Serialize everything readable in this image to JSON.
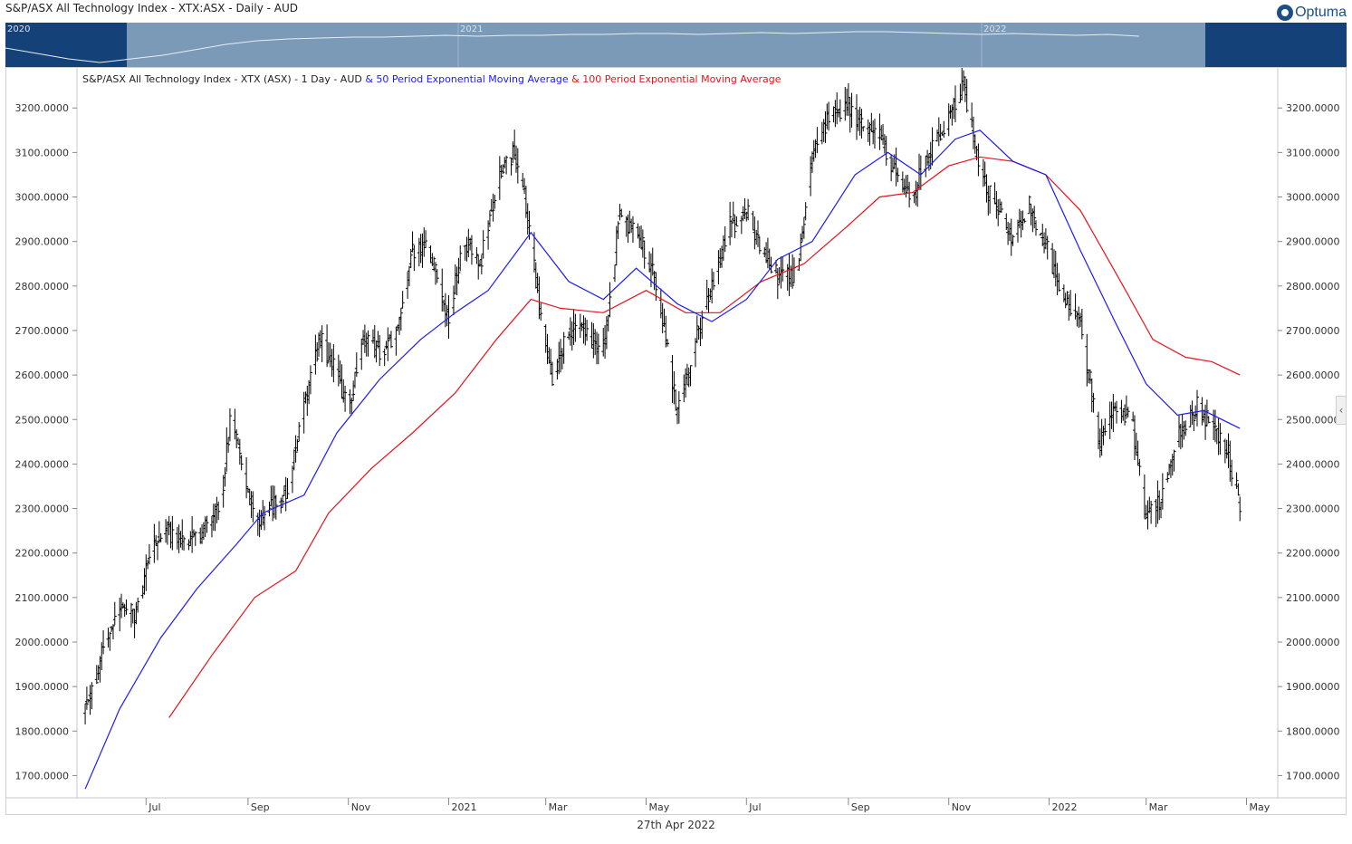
{
  "header": {
    "title": "S&P/ASX All Technology Index - XTX:ASX - Daily - AUD"
  },
  "logo": {
    "text": "Optuma"
  },
  "navigator": {
    "year_labels": [
      "2020",
      "2021",
      "2022"
    ]
  },
  "legend": {
    "main": "S&P/ASX All Technology Index - XTX (ASX) - 1 Day - AUD",
    "ema50": "& 50 Period Exponential Moving Average",
    "ema100": "& 100 Period Exponential Moving Average"
  },
  "footer": {
    "date": "27th Apr 2022"
  },
  "colors": {
    "price": "#000000",
    "ema50": "#1a1aff",
    "ema100": "#e8121a",
    "nav_bg": "#134178",
    "nav_window": "#7a9ab8"
  },
  "chart_data": {
    "type": "line",
    "subtype": "ohlc-bars",
    "ylim": [
      1650,
      3290
    ],
    "y_ticks": [
      "1700.0000",
      "1800.0000",
      "1900.0000",
      "2000.0000",
      "2100.0000",
      "2200.0000",
      "2300.0000",
      "2400.0000",
      "2500.0000",
      "2600.0000",
      "2700.0000",
      "2800.0000",
      "2900.0000",
      "3000.0000",
      "3100.0000",
      "3200.0000"
    ],
    "x_ticks": [
      "Jul",
      "Sep",
      "Nov",
      "2021",
      "Mar",
      "May",
      "Jul",
      "Sep",
      "Nov",
      "2022",
      "Mar",
      "May"
    ],
    "x_range": [
      "2020-05-20",
      "2022-05-20"
    ],
    "series": [
      {
        "name": "S&P/ASX All Technology Index - XTX (ASX) - 1 Day - AUD",
        "x": [
          "2020-05-25",
          "2020-06-05",
          "2020-06-15",
          "2020-06-25",
          "2020-07-05",
          "2020-07-15",
          "2020-07-25",
          "2020-08-05",
          "2020-08-15",
          "2020-08-22",
          "2020-08-28",
          "2020-09-05",
          "2020-09-15",
          "2020-09-25",
          "2020-10-05",
          "2020-10-15",
          "2020-10-25",
          "2020-11-01",
          "2020-11-10",
          "2020-11-20",
          "2020-12-01",
          "2020-12-10",
          "2020-12-20",
          "2021-01-01",
          "2021-01-10",
          "2021-01-20",
          "2021-02-01",
          "2021-02-10",
          "2021-02-17",
          "2021-02-25",
          "2021-03-05",
          "2021-03-15",
          "2021-03-25",
          "2021-04-05",
          "2021-04-15",
          "2021-04-25",
          "2021-05-05",
          "2021-05-12",
          "2021-05-20",
          "2021-06-01",
          "2021-06-10",
          "2021-06-20",
          "2021-07-01",
          "2021-07-10",
          "2021-07-20",
          "2021-08-01",
          "2021-08-10",
          "2021-08-20",
          "2021-09-01",
          "2021-09-10",
          "2021-09-20",
          "2021-10-01",
          "2021-10-10",
          "2021-10-20",
          "2021-11-01",
          "2021-11-10",
          "2021-11-20",
          "2021-12-01",
          "2021-12-10",
          "2021-12-20",
          "2022-01-01",
          "2022-01-10",
          "2022-01-20",
          "2022-02-01",
          "2022-02-10",
          "2022-02-20",
          "2022-03-01",
          "2022-03-10",
          "2022-03-20",
          "2022-04-01",
          "2022-04-10",
          "2022-04-20",
          "2022-04-27"
        ],
        "values": [
          1840,
          1980,
          2080,
          2060,
          2220,
          2250,
          2210,
          2250,
          2300,
          2520,
          2420,
          2270,
          2300,
          2340,
          2530,
          2680,
          2600,
          2520,
          2680,
          2650,
          2690,
          2880,
          2880,
          2720,
          2910,
          2850,
          3050,
          3100,
          2980,
          2760,
          2590,
          2700,
          2700,
          2650,
          2960,
          2920,
          2840,
          2720,
          2510,
          2690,
          2800,
          2930,
          2970,
          2880,
          2820,
          2820,
          3080,
          3180,
          3210,
          3150,
          3130,
          3050,
          3000,
          3100,
          3180,
          3250,
          3050,
          2970,
          2900,
          2980,
          2870,
          2780,
          2720,
          2450,
          2520,
          2510,
          2280,
          2320,
          2460,
          2530,
          2490,
          2420,
          2310
        ]
      },
      {
        "name": "50 Period Exponential Moving Average",
        "x": [
          "2020-05-25",
          "2020-06-15",
          "2020-07-10",
          "2020-08-01",
          "2020-08-25",
          "2020-09-10",
          "2020-10-05",
          "2020-10-25",
          "2020-11-20",
          "2020-12-15",
          "2021-01-05",
          "2021-01-25",
          "2021-02-20",
          "2021-03-15",
          "2021-04-05",
          "2021-04-25",
          "2021-05-20",
          "2021-06-10",
          "2021-07-01",
          "2021-07-20",
          "2021-08-10",
          "2021-09-05",
          "2021-09-25",
          "2021-10-15",
          "2021-11-05",
          "2021-11-20",
          "2021-12-10",
          "2021-12-30",
          "2022-01-20",
          "2022-02-10",
          "2022-03-01",
          "2022-03-20",
          "2022-04-05",
          "2022-04-27"
        ],
        "values": [
          1670,
          1850,
          2010,
          2120,
          2220,
          2290,
          2330,
          2470,
          2590,
          2680,
          2740,
          2790,
          2920,
          2810,
          2770,
          2840,
          2760,
          2720,
          2770,
          2860,
          2900,
          3050,
          3100,
          3050,
          3130,
          3150,
          3080,
          3050,
          2880,
          2720,
          2580,
          2510,
          2520,
          2480
        ]
      },
      {
        "name": "100 Period Exponential Moving Average",
        "x": [
          "2020-07-15",
          "2020-08-10",
          "2020-09-05",
          "2020-09-30",
          "2020-10-20",
          "2020-11-15",
          "2020-12-10",
          "2021-01-05",
          "2021-01-30",
          "2021-02-20",
          "2021-03-10",
          "2021-04-05",
          "2021-05-01",
          "2021-05-25",
          "2021-06-15",
          "2021-07-10",
          "2021-08-05",
          "2021-08-30",
          "2021-09-20",
          "2021-10-10",
          "2021-11-01",
          "2021-11-20",
          "2021-12-10",
          "2021-12-30",
          "2022-01-20",
          "2022-02-15",
          "2022-03-05",
          "2022-03-25",
          "2022-04-10",
          "2022-04-27"
        ],
        "values": [
          1830,
          1970,
          2100,
          2160,
          2290,
          2390,
          2470,
          2560,
          2680,
          2770,
          2750,
          2740,
          2790,
          2740,
          2740,
          2810,
          2850,
          2930,
          3000,
          3010,
          3070,
          3090,
          3080,
          3050,
          2970,
          2800,
          2680,
          2640,
          2630,
          2600
        ]
      }
    ]
  }
}
